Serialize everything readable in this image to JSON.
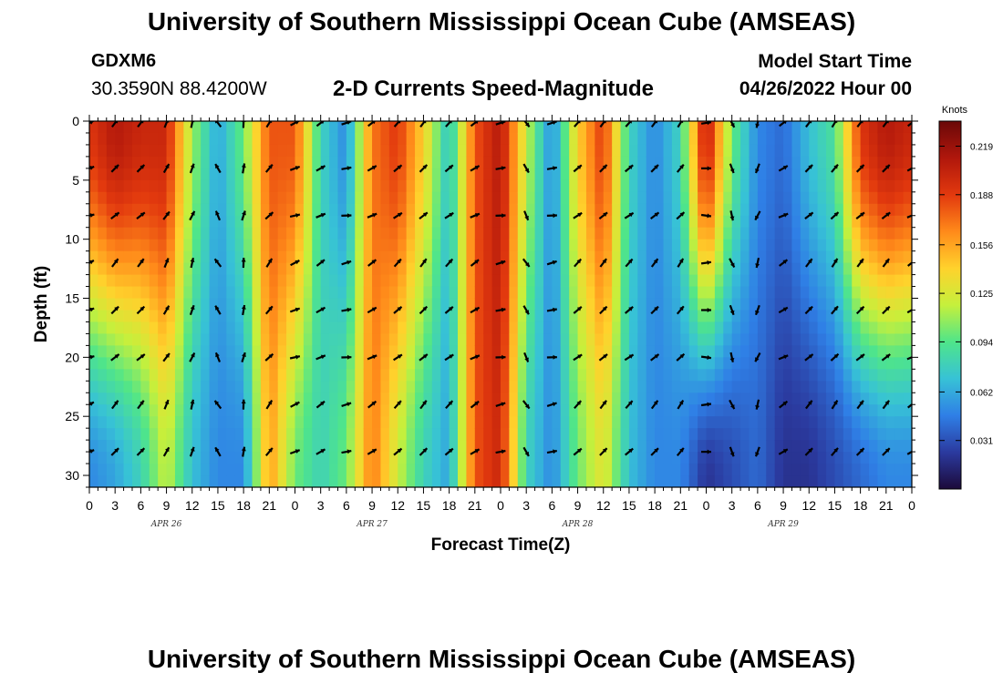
{
  "header": {
    "title": "University of Southern Mississippi Ocean Cube (AMSEAS)",
    "station_id": "GDXM6",
    "coordinates": "30.3590N  88.4200W",
    "subtitle": "2-D Currents Speed-Magnitude",
    "model_start_label": "Model Start Time",
    "model_start_value": "04/26/2022 Hour 00"
  },
  "footer": {
    "title_repeat": "University of Southern Mississippi Ocean Cube (AMSEAS)"
  },
  "chart_data": {
    "type": "heatmap",
    "title": "2-D Currents Speed-Magnitude",
    "xlabel": "Forecast Time(Z)",
    "ylabel": "Depth (ft)",
    "x_range": [
      0,
      96
    ],
    "y_range": [
      0,
      31
    ],
    "y_inverted": true,
    "x_tick_labels": [
      "0",
      "3",
      "6",
      "9",
      "12",
      "15",
      "18",
      "21",
      "0",
      "3",
      "6",
      "9",
      "12",
      "15",
      "18",
      "21",
      "0",
      "3",
      "6",
      "9",
      "12",
      "15",
      "18",
      "21",
      "0",
      "3",
      "6",
      "9",
      "12",
      "15",
      "18",
      "21",
      "0"
    ],
    "y_ticks": [
      0,
      5,
      10,
      15,
      20,
      25,
      30
    ],
    "date_labels": [
      {
        "label": "APR 26",
        "hour": 9
      },
      {
        "label": "APR 27",
        "hour": 33
      },
      {
        "label": "APR 28",
        "hour": 57
      },
      {
        "label": "APR 29",
        "hour": 81
      }
    ],
    "colorbar": {
      "units": "Knots",
      "ticks": [
        "0.219",
        "0.188",
        "0.156",
        "0.125",
        "0.094",
        "0.062",
        "0.031"
      ],
      "range": [
        0,
        0.235
      ],
      "colors": [
        "#1c0a3a",
        "#2b3a9f",
        "#2f7fe6",
        "#37c2d6",
        "#4fe58a",
        "#c5f03c",
        "#ffd22c",
        "#ff8a1a",
        "#e2390e",
        "#b0170c",
        "#6a0808"
      ]
    },
    "speed_profile": {
      "hours": [
        0,
        3,
        6,
        9,
        12,
        15,
        18,
        21,
        24,
        27,
        30,
        33,
        36,
        39,
        42,
        45,
        48,
        51,
        54,
        57,
        60,
        63,
        66,
        69,
        72,
        75,
        78,
        81,
        84,
        87,
        90,
        93,
        96
      ],
      "surface_knots": [
        0.19,
        0.21,
        0.2,
        0.2,
        0.11,
        0.06,
        0.1,
        0.18,
        0.18,
        0.08,
        0.05,
        0.17,
        0.19,
        0.14,
        0.07,
        0.18,
        0.21,
        0.12,
        0.05,
        0.14,
        0.19,
        0.08,
        0.05,
        0.08,
        0.21,
        0.1,
        0.05,
        0.04,
        0.07,
        0.09,
        0.19,
        0.21,
        0.2
      ],
      "bottom_knots": [
        0.05,
        0.06,
        0.08,
        0.12,
        0.07,
        0.05,
        0.05,
        0.16,
        0.1,
        0.08,
        0.1,
        0.17,
        0.12,
        0.08,
        0.06,
        0.18,
        0.2,
        0.08,
        0.05,
        0.1,
        0.13,
        0.07,
        0.05,
        0.05,
        0.02,
        0.03,
        0.04,
        0.02,
        0.02,
        0.03,
        0.04,
        0.05,
        0.05
      ]
    },
    "vector_depths_ft": [
      0,
      4,
      8,
      12,
      16,
      20,
      24,
      28
    ],
    "vector_hours": [
      0,
      3,
      6,
      9,
      12,
      15,
      18,
      21,
      24,
      27,
      30,
      33,
      36,
      39,
      42,
      45,
      48,
      51,
      54,
      57,
      60,
      63,
      66,
      69,
      72,
      75,
      78,
      81,
      84,
      87,
      90,
      93,
      96
    ],
    "vector_directions_deg": [
      70,
      45,
      45,
      30,
      20,
      330,
      10,
      40,
      70,
      60,
      80,
      60,
      50,
      45,
      50,
      60,
      80,
      150,
      80,
      50,
      45,
      50,
      45,
      40,
      90,
      160,
      200,
      60,
      45,
      40,
      45,
      45,
      60
    ]
  }
}
